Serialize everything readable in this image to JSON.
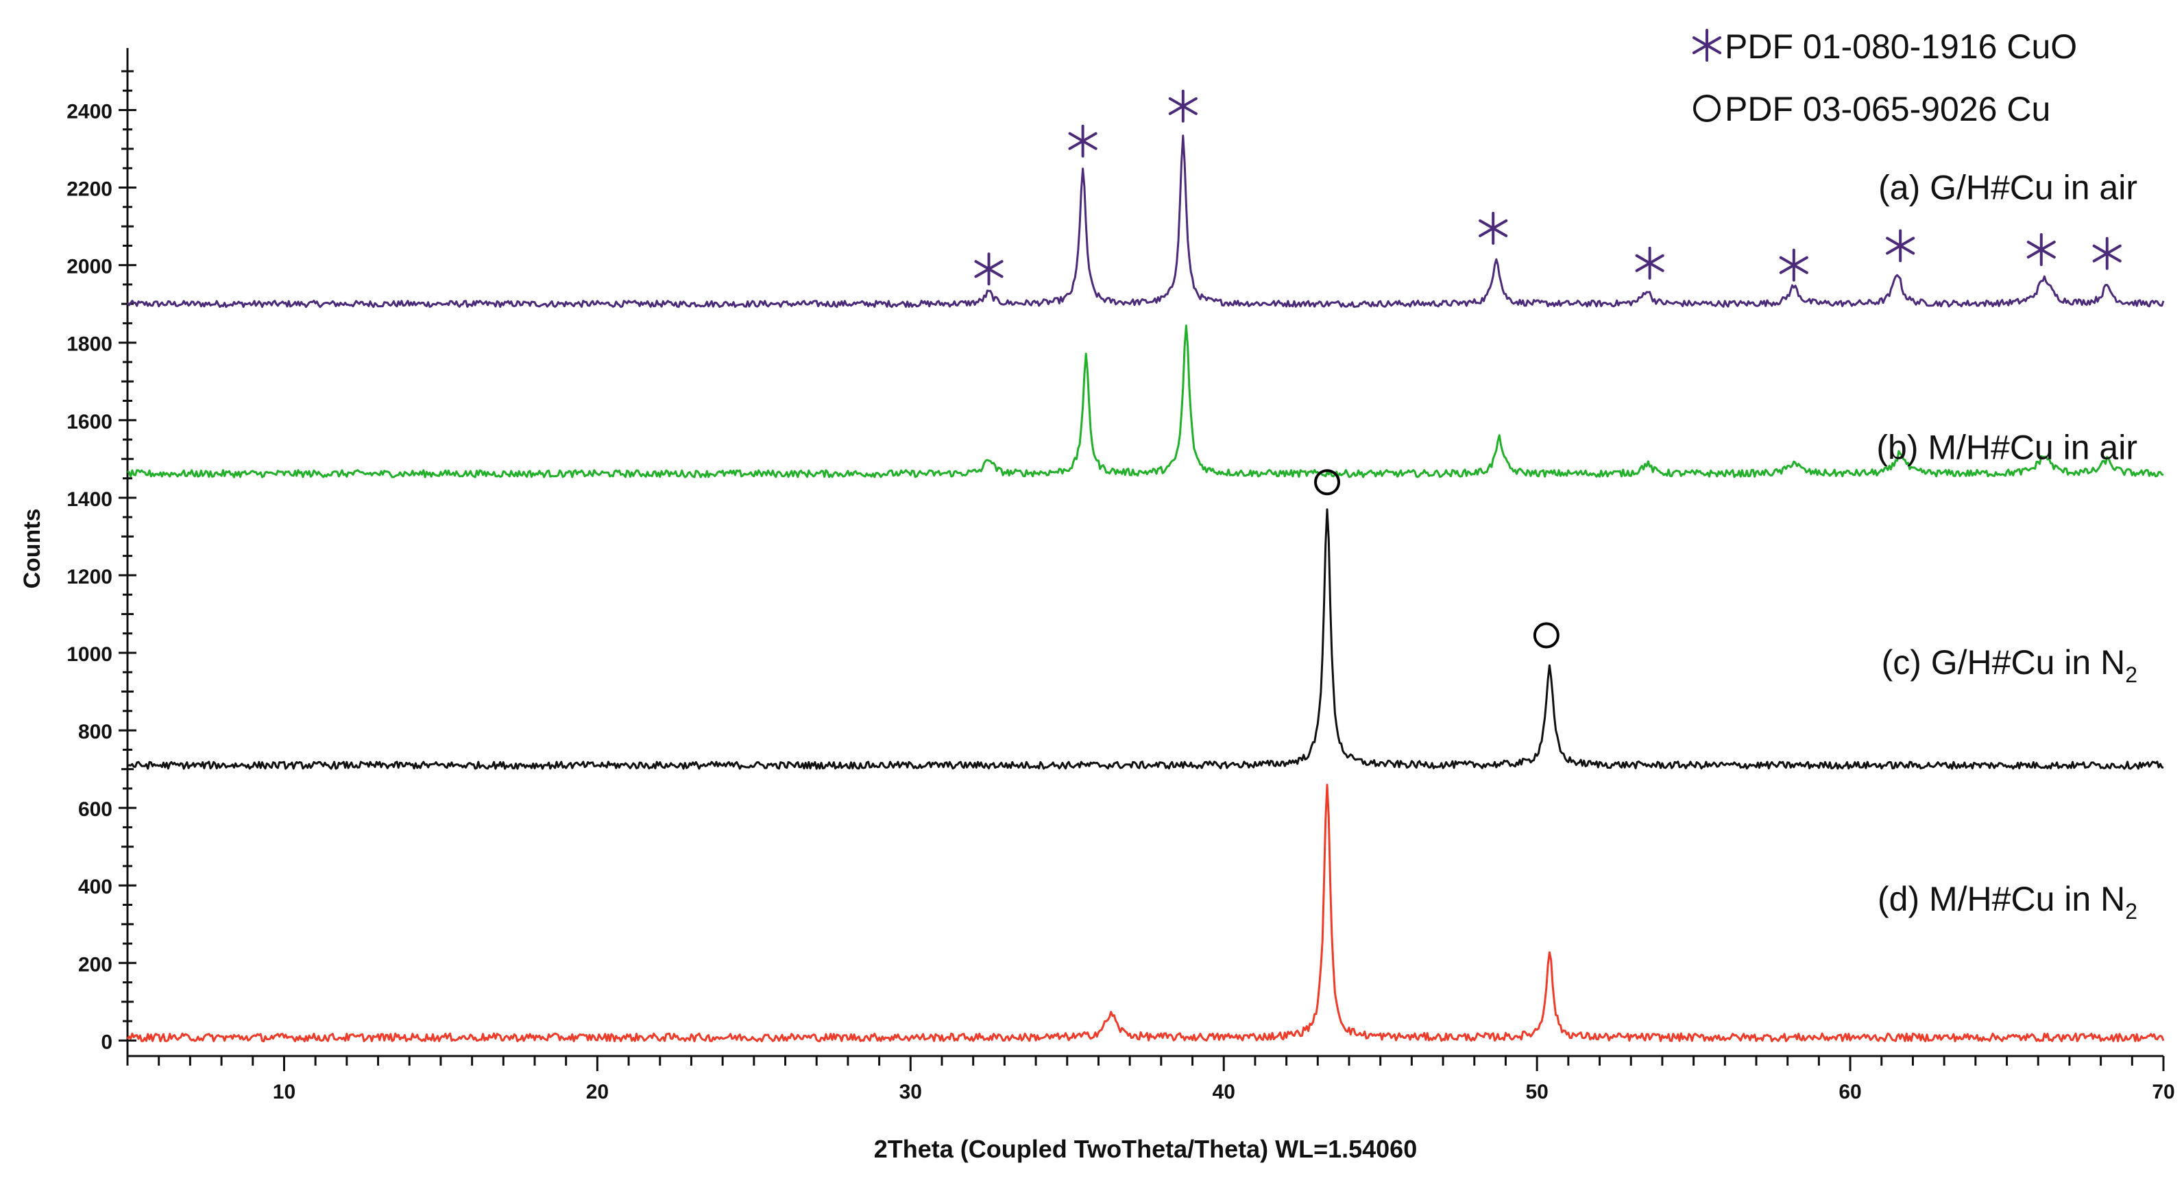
{
  "chart_data": {
    "type": "line",
    "xlabel": "2Theta (Coupled TwoTheta/Theta) WL=1.54060",
    "ylabel": "Counts",
    "xlim": [
      5,
      70
    ],
    "ylim": [
      -40,
      2560
    ],
    "x_ticks": [
      10,
      20,
      30,
      40,
      50,
      60,
      70
    ],
    "y_ticks": [
      0,
      200,
      400,
      600,
      800,
      1000,
      1200,
      1400,
      1600,
      1800,
      2000,
      2200,
      2400
    ],
    "x_step": 0.05,
    "grid": false,
    "legend_position": "top-right",
    "legend": [
      {
        "symbol": "star",
        "label": "PDF 01-080-1916 CuO",
        "color": "#4b2a7a"
      },
      {
        "symbol": "circle",
        "label": "PDF 03-065-9026 Cu",
        "color": "#000000"
      }
    ],
    "series": [
      {
        "key": "a",
        "label_main": "(a) G/H#Cu in air",
        "label_sub": "",
        "color": "#4b2a7a",
        "baseline": 1900,
        "noise": 8,
        "peaks": [
          [
            32.5,
            30,
            0.15
          ],
          [
            35.5,
            345,
            0.12
          ],
          [
            38.7,
            430,
            0.12
          ],
          [
            48.7,
            120,
            0.14
          ],
          [
            53.5,
            35,
            0.16
          ],
          [
            58.2,
            45,
            0.18
          ],
          [
            61.5,
            80,
            0.16
          ],
          [
            66.2,
            65,
            0.25
          ],
          [
            68.2,
            45,
            0.18
          ]
        ],
        "markers": [
          {
            "symbol": "star",
            "x": 32.5,
            "y": 1990
          },
          {
            "symbol": "star",
            "x": 35.5,
            "y": 2320
          },
          {
            "symbol": "star",
            "x": 38.7,
            "y": 2410
          },
          {
            "symbol": "star",
            "x": 48.6,
            "y": 2095
          },
          {
            "symbol": "star",
            "x": 53.6,
            "y": 2005
          },
          {
            "symbol": "star",
            "x": 58.2,
            "y": 2000
          },
          {
            "symbol": "star",
            "x": 61.6,
            "y": 2050
          },
          {
            "symbol": "star",
            "x": 66.1,
            "y": 2040
          },
          {
            "symbol": "star",
            "x": 68.2,
            "y": 2030
          }
        ]
      },
      {
        "key": "b",
        "label_main": "(b) M/H#Cu in air",
        "label_sub": "",
        "color": "#22b02a",
        "baseline": 1462,
        "noise": 9,
        "peaks": [
          [
            32.5,
            40,
            0.15
          ],
          [
            35.6,
            300,
            0.12
          ],
          [
            38.8,
            380,
            0.12
          ],
          [
            48.8,
            90,
            0.15
          ],
          [
            53.5,
            25,
            0.18
          ],
          [
            58.2,
            30,
            0.2
          ],
          [
            61.6,
            55,
            0.18
          ],
          [
            66.2,
            45,
            0.25
          ],
          [
            68.2,
            35,
            0.2
          ]
        ],
        "markers": []
      },
      {
        "key": "c",
        "label_main": "(c) G/H#Cu in N",
        "label_sub": "2",
        "color": "#111111",
        "baseline": 710,
        "noise": 9,
        "peaks": [
          [
            43.3,
            660,
            0.13
          ],
          [
            50.4,
            250,
            0.15
          ]
        ],
        "markers": [
          {
            "symbol": "circle",
            "x": 43.3,
            "y": 1440
          },
          {
            "symbol": "circle",
            "x": 50.3,
            "y": 1045
          }
        ]
      },
      {
        "key": "d",
        "label_main": "(d) M/H#Cu in N",
        "label_sub": "2",
        "color": "#ee3b2a",
        "baseline": 8,
        "noise": 10,
        "peaks": [
          [
            36.4,
            60,
            0.22
          ],
          [
            43.3,
            660,
            0.12
          ],
          [
            50.4,
            220,
            0.13
          ]
        ],
        "markers": []
      }
    ]
  }
}
